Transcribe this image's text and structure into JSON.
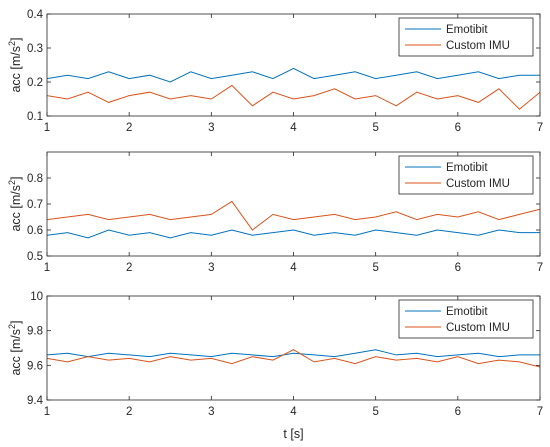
{
  "colors": {
    "Emotibit": "#0072BD",
    "Custom IMU": "#D95319",
    "axis": "#262626",
    "background": "#ffffff"
  },
  "xlabel": "t [s]",
  "chart_data": [
    {
      "type": "line",
      "xlim": [
        1,
        7
      ],
      "ylim": [
        0.1,
        0.4
      ],
      "xticks": [
        "1",
        "2",
        "3",
        "4",
        "5",
        "6",
        "7"
      ],
      "yticks": [
        "0.1",
        "0.2",
        "0.3",
        "0.4"
      ],
      "ylabel": {
        "prefix": "acc [m/s",
        "sup": "2",
        "suffix": "]"
      },
      "xlabel": "",
      "legend_position": "top-right",
      "grid": false,
      "series": [
        {
          "name": "Emotibit",
          "x": [
            1.0,
            1.25,
            1.5,
            1.75,
            2.0,
            2.25,
            2.5,
            2.75,
            3.0,
            3.25,
            3.5,
            3.75,
            4.0,
            4.25,
            4.5,
            4.75,
            5.0,
            5.25,
            5.5,
            5.75,
            6.0,
            6.25,
            6.5,
            6.75,
            7.0
          ],
          "values": [
            0.21,
            0.22,
            0.21,
            0.23,
            0.21,
            0.22,
            0.2,
            0.23,
            0.21,
            0.22,
            0.23,
            0.21,
            0.24,
            0.21,
            0.22,
            0.23,
            0.21,
            0.22,
            0.23,
            0.21,
            0.22,
            0.23,
            0.21,
            0.22,
            0.22
          ]
        },
        {
          "name": "Custom IMU",
          "x": [
            1.0,
            1.25,
            1.5,
            1.75,
            2.0,
            2.25,
            2.5,
            2.75,
            3.0,
            3.25,
            3.5,
            3.75,
            4.0,
            4.25,
            4.5,
            4.75,
            5.0,
            5.25,
            5.5,
            5.75,
            6.0,
            6.25,
            6.5,
            6.75,
            7.0
          ],
          "values": [
            0.16,
            0.15,
            0.17,
            0.14,
            0.16,
            0.17,
            0.15,
            0.16,
            0.15,
            0.19,
            0.13,
            0.17,
            0.15,
            0.16,
            0.18,
            0.15,
            0.16,
            0.13,
            0.17,
            0.15,
            0.16,
            0.14,
            0.18,
            0.12,
            0.17
          ]
        }
      ]
    },
    {
      "type": "line",
      "xlim": [
        1,
        7
      ],
      "ylim": [
        0.5,
        0.9
      ],
      "xticks": [
        "1",
        "2",
        "3",
        "4",
        "5",
        "6",
        "7"
      ],
      "yticks": [
        "0.5",
        "0.6",
        "0.7",
        "0.8"
      ],
      "ylabel": {
        "prefix": "acc [m/s",
        "sup": "2",
        "suffix": "]"
      },
      "xlabel": "",
      "legend_position": "top-right",
      "grid": false,
      "series": [
        {
          "name": "Emotibit",
          "x": [
            1.0,
            1.25,
            1.5,
            1.75,
            2.0,
            2.25,
            2.5,
            2.75,
            3.0,
            3.25,
            3.5,
            3.75,
            4.0,
            4.25,
            4.5,
            4.75,
            5.0,
            5.25,
            5.5,
            5.75,
            6.0,
            6.25,
            6.5,
            6.75,
            7.0
          ],
          "values": [
            0.58,
            0.59,
            0.57,
            0.6,
            0.58,
            0.59,
            0.57,
            0.59,
            0.58,
            0.6,
            0.58,
            0.59,
            0.6,
            0.58,
            0.59,
            0.58,
            0.6,
            0.59,
            0.58,
            0.6,
            0.59,
            0.58,
            0.6,
            0.59,
            0.59
          ]
        },
        {
          "name": "Custom IMU",
          "x": [
            1.0,
            1.25,
            1.5,
            1.75,
            2.0,
            2.25,
            2.5,
            2.75,
            3.0,
            3.25,
            3.5,
            3.75,
            4.0,
            4.25,
            4.5,
            4.75,
            5.0,
            5.25,
            5.5,
            5.75,
            6.0,
            6.25,
            6.5,
            6.75,
            7.0
          ],
          "values": [
            0.64,
            0.65,
            0.66,
            0.64,
            0.65,
            0.66,
            0.64,
            0.65,
            0.66,
            0.71,
            0.6,
            0.66,
            0.64,
            0.65,
            0.66,
            0.64,
            0.65,
            0.67,
            0.64,
            0.66,
            0.65,
            0.67,
            0.64,
            0.66,
            0.68
          ]
        }
      ]
    },
    {
      "type": "line",
      "xlim": [
        1,
        7
      ],
      "ylim": [
        9.4,
        10
      ],
      "xticks": [
        "1",
        "2",
        "3",
        "4",
        "5",
        "6",
        "7"
      ],
      "yticks": [
        "9.4",
        "9.6",
        "9.8",
        "10"
      ],
      "ylabel": {
        "prefix": "acc [m/s",
        "sup": "2",
        "suffix": "]"
      },
      "xlabel": "t [s]",
      "legend_position": "top-right",
      "grid": false,
      "series": [
        {
          "name": "Emotibit",
          "x": [
            1.0,
            1.25,
            1.5,
            1.75,
            2.0,
            2.25,
            2.5,
            2.75,
            3.0,
            3.25,
            3.5,
            3.75,
            4.0,
            4.25,
            4.5,
            4.75,
            5.0,
            5.25,
            5.5,
            5.75,
            6.0,
            6.25,
            6.5,
            6.75,
            7.0
          ],
          "values": [
            9.66,
            9.67,
            9.65,
            9.67,
            9.66,
            9.65,
            9.67,
            9.66,
            9.65,
            9.67,
            9.66,
            9.65,
            9.67,
            9.66,
            9.65,
            9.67,
            9.69,
            9.66,
            9.67,
            9.65,
            9.66,
            9.67,
            9.65,
            9.66,
            9.66
          ]
        },
        {
          "name": "Custom IMU",
          "x": [
            1.0,
            1.25,
            1.5,
            1.75,
            2.0,
            2.25,
            2.5,
            2.75,
            3.0,
            3.25,
            3.5,
            3.75,
            4.0,
            4.25,
            4.5,
            4.75,
            5.0,
            5.25,
            5.5,
            5.75,
            6.0,
            6.25,
            6.5,
            6.75,
            7.0
          ],
          "values": [
            9.64,
            9.62,
            9.65,
            9.63,
            9.64,
            9.62,
            9.65,
            9.63,
            9.64,
            9.61,
            9.65,
            9.63,
            9.69,
            9.62,
            9.64,
            9.61,
            9.65,
            9.63,
            9.64,
            9.62,
            9.65,
            9.61,
            9.63,
            9.62,
            9.59
          ]
        }
      ]
    }
  ]
}
